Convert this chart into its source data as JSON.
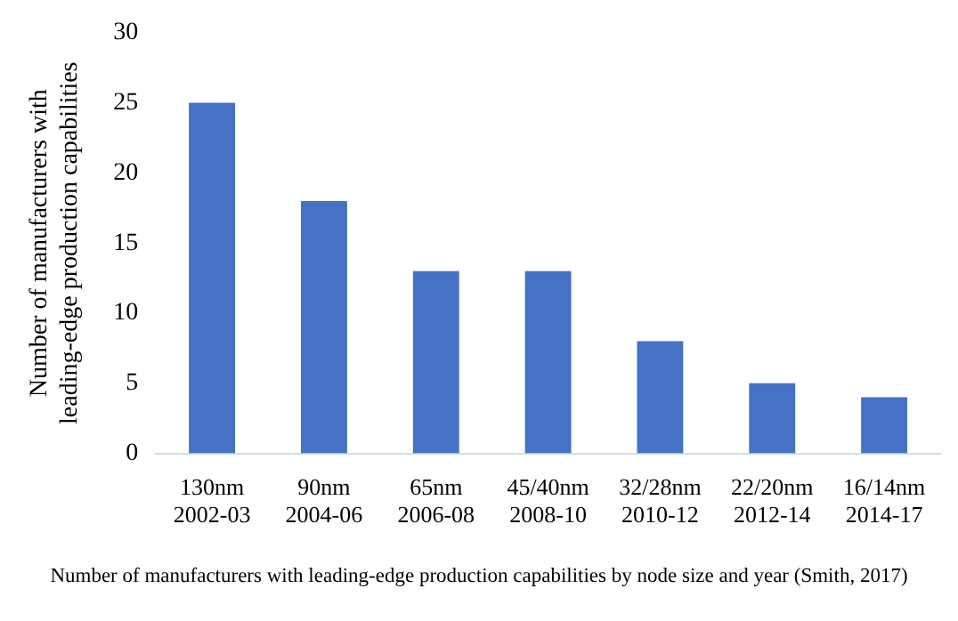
{
  "chart_data": {
    "type": "bar",
    "ylabel": "Number of manufacturers with\nleading-edge production capabilities",
    "categories": [
      "130nm\n2002-03",
      "90nm\n2004-06",
      "65nm\n2006-08",
      "45/40nm\n2008-10",
      "32/28nm\n2010-12",
      "22/20nm\n2012-14",
      "16/14nm\n2014-17"
    ],
    "values": [
      25,
      18,
      13,
      13,
      8,
      5,
      4
    ],
    "color": "#4472c4",
    "ylim": [
      0,
      30
    ],
    "yticks": [
      0,
      5,
      10,
      15,
      20,
      25,
      30
    ],
    "grid": false,
    "legend": false,
    "annotations": [
      "Number of manufacturers with leading-edge production capabilities by node size and year (Smith, 2017)"
    ]
  }
}
